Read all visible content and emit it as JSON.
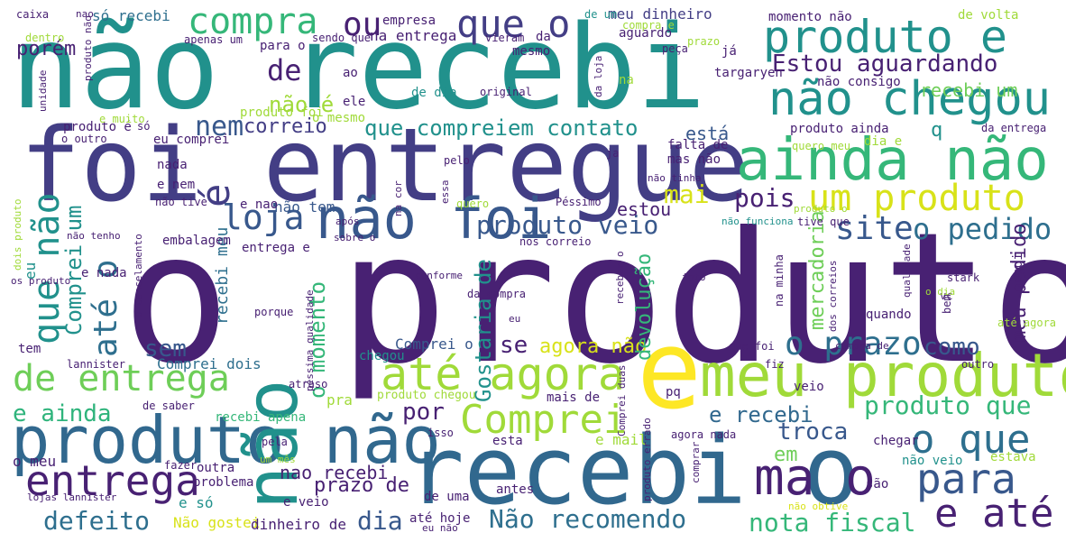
{
  "colors": {
    "dark_purple": "#482173",
    "indigo": "#433e85",
    "slate": "#38588c",
    "steel": "#2e6f8e",
    "teal": "#21918c",
    "green": "#2fb47c",
    "lime": "#84d44b",
    "yellow": "#fde725"
  },
  "words": [
    {
      "text": "o produto",
      "color": "#482173"
    },
    {
      "text": "não recebi",
      "color": "#21918c"
    },
    {
      "text": "foi entregue",
      "color": "#433e85"
    },
    {
      "text": "recebi o",
      "color": "#31688e"
    },
    {
      "text": "produto não",
      "color": "#31688e"
    },
    {
      "text": "e",
      "color": "#fde725"
    },
    {
      "text": "ainda não",
      "color": "#35b779"
    },
    {
      "text": "produto e",
      "color": "#21918c"
    },
    {
      "text": "não chegou",
      "color": "#21918c"
    },
    {
      "text": "meu produto",
      "color": "#a0da39"
    },
    {
      "text": "não foi",
      "color": "#38588c"
    },
    {
      "text": "até agora",
      "color": "#a0da39"
    },
    {
      "text": "que o",
      "color": "#433e85"
    },
    {
      "text": "compra",
      "color": "#35b779"
    },
    {
      "text": "Estou aguardando",
      "color": "#482173"
    },
    {
      "text": "que compreiem contato",
      "color": "#21918c"
    },
    {
      "text": "um produto",
      "color": "#d8e219"
    },
    {
      "text": "de entrega",
      "color": "#6ece58"
    },
    {
      "text": "Comprei",
      "color": "#a0da39"
    },
    {
      "text": "entrega",
      "color": "#482173"
    },
    {
      "text": "para",
      "color": "#38588c"
    },
    {
      "text": "o que",
      "color": "#2e6f8e"
    },
    {
      "text": "e até",
      "color": "#482173"
    },
    {
      "text": "o prazo",
      "color": "#2e6f8e"
    },
    {
      "text": "produto que",
      "color": "#35b779"
    },
    {
      "text": "produto veio",
      "color": "#38588c"
    },
    {
      "text": "loja",
      "color": "#38588c"
    },
    {
      "text": "site",
      "color": "#38588c"
    },
    {
      "text": "o pedido",
      "color": "#2e6f8e"
    },
    {
      "text": "Não recomendo",
      "color": "#2e6f8e"
    },
    {
      "text": "nota fiscal",
      "color": "#35b779"
    },
    {
      "text": "defeito",
      "color": "#2e6f8e"
    },
    {
      "text": "dia",
      "color": "#38588c"
    },
    {
      "text": "não",
      "color": "#21918c"
    },
    {
      "text": "ma o",
      "color": "#482173"
    },
    {
      "text": "que não",
      "color": "#21918c"
    },
    {
      "text": "até o",
      "color": "#2e6f8e"
    },
    {
      "text": "é",
      "color": "#433e85"
    },
    {
      "text": "ou",
      "color": "#482173"
    },
    {
      "text": "de",
      "color": "#482173"
    },
    {
      "text": "nem",
      "color": "#38588c"
    },
    {
      "text": "correio",
      "color": "#433e85"
    },
    {
      "text": "não é",
      "color": "#a0da39"
    },
    {
      "text": "porém",
      "color": "#482173"
    },
    {
      "text": "pois",
      "color": "#482173"
    },
    {
      "text": "mai",
      "color": "#d8e219"
    },
    {
      "text": "está",
      "color": "#38588c"
    },
    {
      "text": "recebi um",
      "color": "#6ece58"
    },
    {
      "text": "estou",
      "color": "#482173"
    },
    {
      "text": "como",
      "color": "#38588c"
    },
    {
      "text": "se",
      "color": "#482173"
    },
    {
      "text": "sem",
      "color": "#38588c"
    },
    {
      "text": "por",
      "color": "#482173"
    },
    {
      "text": "e ainda",
      "color": "#2fb47c"
    },
    {
      "text": "e recebi",
      "color": "#31688e"
    },
    {
      "text": "troca",
      "color": "#38588c"
    },
    {
      "text": "em",
      "color": "#6ece58"
    },
    {
      "text": "prazo de",
      "color": "#482173"
    },
    {
      "text": "nao recebi",
      "color": "#482173"
    },
    {
      "text": "agora não",
      "color": "#d8e219"
    },
    {
      "text": "devolução",
      "color": "#35b779"
    },
    {
      "text": "o momento",
      "color": "#35b779"
    },
    {
      "text": "Gostaria de",
      "color": "#21918c"
    },
    {
      "text": "mercadoria",
      "color": "#6ece58"
    },
    {
      "text": "meu pedido",
      "color": "#482173"
    },
    {
      "text": "Comprei um",
      "color": "#21918c"
    },
    {
      "text": "não tem",
      "color": "#38588c"
    },
    {
      "text": "recebi meu",
      "color": "#2e6f8e"
    },
    {
      "text": "produto é",
      "color": "#482173"
    },
    {
      "text": "eu comprei",
      "color": "#482173"
    },
    {
      "text": "Comprei o",
      "color": "#38588c"
    },
    {
      "text": "Comprei dois",
      "color": "#2e6f8e"
    },
    {
      "text": "recebi apena",
      "color": "#35b779"
    },
    {
      "text": "empresa",
      "color": "#482173"
    },
    {
      "text": "só recebi",
      "color": "#2e6f8e"
    },
    {
      "text": "meu dinheiro",
      "color": "#433e85"
    },
    {
      "text": "momento não",
      "color": "#482173"
    },
    {
      "text": "de volta",
      "color": "#a0da39"
    },
    {
      "text": "na entrega",
      "color": "#482173"
    },
    {
      "text": "aguardo",
      "color": "#482173"
    },
    {
      "text": "mesmo",
      "color": "#482173"
    },
    {
      "text": "não consigo",
      "color": "#482173"
    },
    {
      "text": "targaryen",
      "color": "#482173"
    },
    {
      "text": "produto ainda",
      "color": "#482173"
    },
    {
      "text": "da entrega",
      "color": "#482173"
    },
    {
      "text": "falta de",
      "color": "#482173"
    },
    {
      "text": "mas não",
      "color": "#482173"
    },
    {
      "text": "dia e",
      "color": "#a0da39"
    },
    {
      "text": "q",
      "color": "#21918c"
    },
    {
      "text": "já",
      "color": "#482173"
    },
    {
      "text": "na",
      "color": "#a0da39"
    },
    {
      "text": "ele",
      "color": "#482173"
    },
    {
      "text": "nada",
      "color": "#482173"
    },
    {
      "text": "e nem",
      "color": "#482173"
    },
    {
      "text": "e nao",
      "color": "#482173"
    },
    {
      "text": "embalagem",
      "color": "#482173"
    },
    {
      "text": "entrega e",
      "color": "#482173"
    },
    {
      "text": "e nada",
      "color": "#482173"
    },
    {
      "text": "tem",
      "color": "#482173"
    },
    {
      "text": "eu",
      "color": "#21918c"
    },
    {
      "text": "lannister",
      "color": "#482173"
    },
    {
      "text": "atraso",
      "color": "#482173"
    },
    {
      "text": "de saber",
      "color": "#482173"
    },
    {
      "text": "pra",
      "color": "#a0da39"
    },
    {
      "text": "chegou",
      "color": "#21918c"
    },
    {
      "text": "produto chegou",
      "color": "#a0da39"
    },
    {
      "text": "mais de",
      "color": "#482173"
    },
    {
      "text": "pq",
      "color": "#482173"
    },
    {
      "text": "veio",
      "color": "#482173"
    },
    {
      "text": "outro",
      "color": "#482173"
    },
    {
      "text": "fiz",
      "color": "#482173"
    },
    {
      "text": "esta",
      "color": "#482173"
    },
    {
      "text": "e mail",
      "color": "#a0da39"
    },
    {
      "text": "isso",
      "color": "#482173"
    },
    {
      "text": "pela",
      "color": "#482173"
    },
    {
      "text": "fazer",
      "color": "#482173"
    },
    {
      "text": "o meu",
      "color": "#482173"
    },
    {
      "text": "outra",
      "color": "#482173"
    },
    {
      "text": "problema",
      "color": "#482173"
    },
    {
      "text": "e só",
      "color": "#21918c"
    },
    {
      "text": "e veio",
      "color": "#482173"
    },
    {
      "text": "Não gostei",
      "color": "#d8e219"
    },
    {
      "text": "dinheiro de",
      "color": "#482173"
    },
    {
      "text": "até hoje",
      "color": "#482173"
    },
    {
      "text": "antes",
      "color": "#482173"
    },
    {
      "text": "de uma",
      "color": "#482173"
    },
    {
      "text": "não veio",
      "color": "#21918c"
    },
    {
      "text": "estava",
      "color": "#a0da39"
    },
    {
      "text": "são",
      "color": "#482173"
    },
    {
      "text": "chegar",
      "color": "#482173"
    },
    {
      "text": "agora nada",
      "color": "#482173"
    },
    {
      "text": "quando",
      "color": "#482173"
    },
    {
      "text": "bem",
      "color": "#482173"
    },
    {
      "text": "vc",
      "color": "#482173"
    },
    {
      "text": "que foi",
      "color": "#482173"
    },
    {
      "text": "compra de",
      "color": "#482173"
    },
    {
      "text": "até agora",
      "color": "#a0da39"
    },
    {
      "text": "pedi",
      "color": "#482173"
    },
    {
      "text": "stark",
      "color": "#482173"
    },
    {
      "text": "caixa",
      "color": "#482173"
    },
    {
      "text": "nao",
      "color": "#482173"
    },
    {
      "text": "dentro",
      "color": "#a0da39"
    },
    {
      "text": "apenas um",
      "color": "#482173"
    },
    {
      "text": "para o",
      "color": "#482173"
    },
    {
      "text": "sendo que",
      "color": "#482173"
    },
    {
      "text": "vieram",
      "color": "#482173"
    },
    {
      "text": "da",
      "color": "#482173"
    },
    {
      "text": "ao",
      "color": "#482173"
    },
    {
      "text": "e muito",
      "color": "#a0da39"
    },
    {
      "text": "produto foi",
      "color": "#a0da39"
    },
    {
      "text": "o mesmo",
      "color": "#a0da39"
    },
    {
      "text": "de dia",
      "color": "#21918c"
    },
    {
      "text": "original",
      "color": "#482173"
    },
    {
      "text": "quero meu",
      "color": "#a0da39"
    },
    {
      "text": "prazo",
      "color": "#a0da39"
    },
    {
      "text": "peça",
      "color": "#482173"
    },
    {
      "text": "compra e",
      "color": "#a0da39"
    },
    {
      "text": "o outro",
      "color": "#482173"
    },
    {
      "text": "só",
      "color": "#482173"
    },
    {
      "text": "pelo",
      "color": "#482173"
    },
    {
      "text": "ja",
      "color": "#482173"
    },
    {
      "text": "Péssimo",
      "color": "#482173"
    },
    {
      "text": "quero",
      "color": "#a0da39"
    },
    {
      "text": "não tinha",
      "color": "#482173"
    },
    {
      "text": "não funciona",
      "color": "#21918c"
    },
    {
      "text": "produto o",
      "color": "#a0da39"
    },
    {
      "text": "tive que",
      "color": "#482173"
    },
    {
      "text": "após",
      "color": "#482173"
    },
    {
      "text": "sobre o",
      "color": "#482173"
    },
    {
      "text": "não tive",
      "color": "#482173"
    },
    {
      "text": "não tenho",
      "color": "#482173"
    },
    {
      "text": "dois produto",
      "color": "#a0da39"
    },
    {
      "text": "os produto",
      "color": "#482173"
    },
    {
      "text": "unidade",
      "color": "#482173"
    },
    {
      "text": "nos correio",
      "color": "#482173"
    },
    {
      "text": "receber o",
      "color": "#482173"
    },
    {
      "text": "conforme",
      "color": "#482173"
    },
    {
      "text": "da compra",
      "color": "#482173"
    },
    {
      "text": "foto",
      "color": "#482173"
    },
    {
      "text": "na minha",
      "color": "#482173"
    },
    {
      "text": "qualidade",
      "color": "#482173"
    },
    {
      "text": "o dia",
      "color": "#a0da39"
    },
    {
      "text": "porque",
      "color": "#482173"
    },
    {
      "text": "eu",
      "color": "#482173"
    },
    {
      "text": "o cancelamento",
      "color": "#482173"
    },
    {
      "text": "péssima qualidade",
      "color": "#482173"
    },
    {
      "text": "Comprei duas",
      "color": "#482173"
    },
    {
      "text": "produto errado",
      "color": "#482173"
    },
    {
      "text": "comprar",
      "color": "#482173"
    },
    {
      "text": "um mês",
      "color": "#a0da39"
    },
    {
      "text": "lojas lannister",
      "color": "#482173"
    },
    {
      "text": "eu não",
      "color": "#482173"
    },
    {
      "text": "não obtive",
      "color": "#d8e219"
    },
    {
      "text": "dos correios",
      "color": "#482173"
    },
    {
      "text": "na cor",
      "color": "#482173"
    },
    {
      "text": "essa",
      "color": "#482173"
    },
    {
      "text": "da loja",
      "color": "#482173"
    },
    {
      "text": "produto não",
      "color": "#482173"
    },
    {
      "text": "de um",
      "color": "#21918c"
    }
  ]
}
